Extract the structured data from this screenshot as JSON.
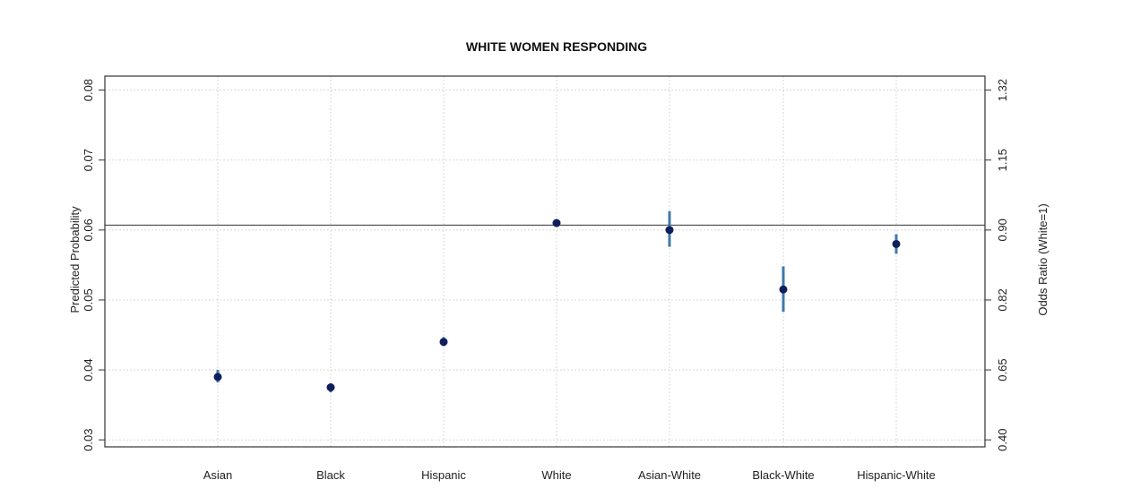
{
  "chart_data": {
    "type": "scatter",
    "title": "WHITE WOMEN RESPONDING",
    "xlabel": "",
    "ylabel": "Predicted Probability",
    "ylabel_right": "Odds Ratio (White=1)",
    "categories": [
      "Asian",
      "Black",
      "Hispanic",
      "White",
      "Asian-White",
      "Black-White",
      "Hispanic-White"
    ],
    "values": [
      0.039,
      0.0375,
      0.044,
      0.061,
      0.06,
      0.0515,
      0.058
    ],
    "error_low": [
      0.0382,
      0.0368,
      0.0434,
      0.061,
      0.0576,
      0.0483,
      0.0566
    ],
    "error_high": [
      0.04,
      0.0381,
      0.0447,
      0.061,
      0.0627,
      0.0548,
      0.0594
    ],
    "reference_line": 0.0607,
    "ylim": [
      0.029,
      0.082
    ],
    "yticks": [
      0.03,
      0.04,
      0.05,
      0.06,
      0.07,
      0.08
    ],
    "ytick_labels": [
      "0.03",
      "0.04",
      "0.05",
      "0.06",
      "0.07",
      "0.08"
    ],
    "right_ytick_labels": [
      "0.40",
      "0.65",
      "0.82",
      "0.90",
      "1.15",
      "1.32"
    ],
    "grid": true,
    "colors": {
      "point": "#0f1f5c",
      "error_bar": "#3f79a8",
      "grid": "#d8d8d8"
    }
  }
}
